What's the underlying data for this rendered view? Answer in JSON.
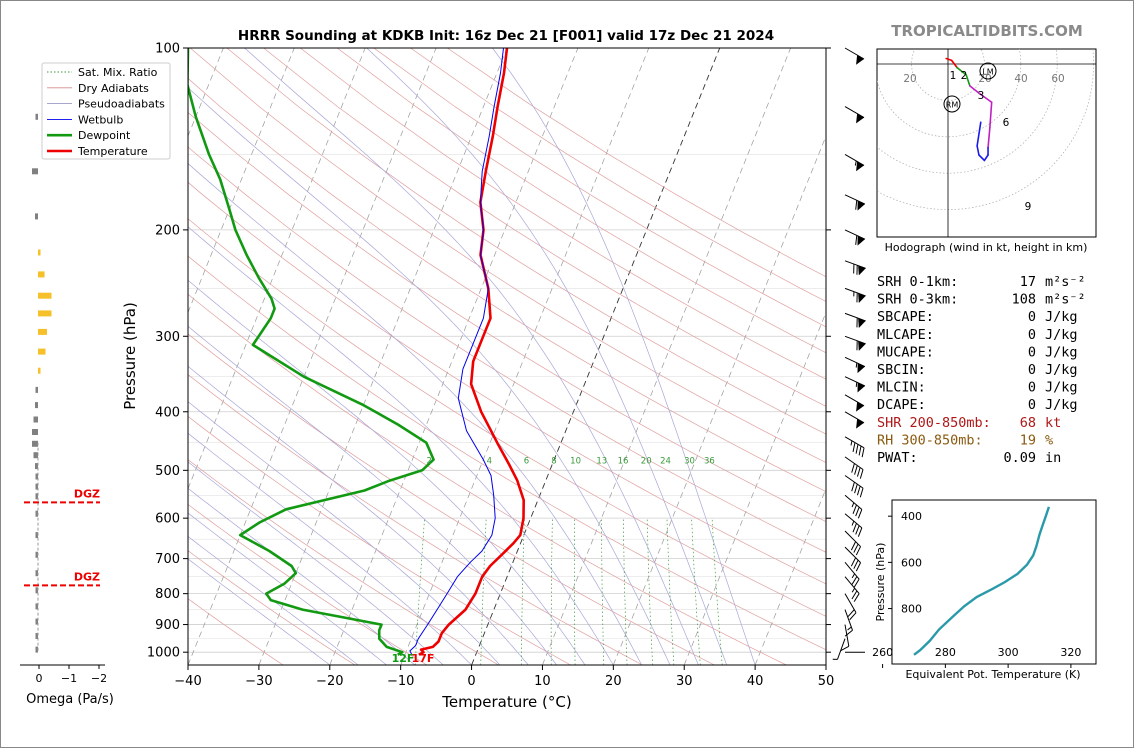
{
  "chart_data": {
    "type": "line",
    "title": "HRRR Sounding at KDKB Init: 16z Dec 21 [F001] valid 17z Dec 21 2024",
    "watermark": "TROPICALTIDBITS.COM",
    "xlabel": "Temperature (°C)",
    "ylabel": "Pressure (hPa)",
    "xlim": [
      -40,
      50
    ],
    "ylim": [
      1050,
      100
    ],
    "x_ticks": [
      -40,
      -30,
      -20,
      -10,
      0,
      10,
      20,
      30,
      40,
      50
    ],
    "x_tick_labels": [
      "−40",
      "−30",
      "−20",
      "−10",
      "0",
      "10",
      "20",
      "30",
      "40",
      "50"
    ],
    "y_ticks": [
      100,
      200,
      300,
      400,
      500,
      600,
      700,
      800,
      900,
      1000
    ],
    "y_tick_labels": [
      "100",
      "200",
      "300",
      "400",
      "500",
      "600",
      "700",
      "800",
      "900",
      "1000"
    ],
    "mixing_ratio_labels": [
      "2",
      "4",
      "6",
      "8",
      "10",
      "13",
      "16",
      "20",
      "24",
      "30",
      "36"
    ],
    "legend": {
      "placement": "upper-left",
      "items": [
        {
          "label": "Sat. Mix. Ratio",
          "color": "#3a9a3a",
          "style": "dotted"
        },
        {
          "label": "Dry Adiabats",
          "color": "#d48a8a",
          "style": "solid"
        },
        {
          "label": "Pseudoadiabats",
          "color": "#9a9ac8",
          "style": "solid"
        },
        {
          "label": "Wetbulb",
          "color": "#0000ee",
          "style": "solid"
        },
        {
          "label": "Dewpoint",
          "color": "#119911",
          "style": "bold"
        },
        {
          "label": "Temperature",
          "color": "#ee0000",
          "style": "bold"
        }
      ]
    },
    "series": [
      {
        "name": "Temperature",
        "color": "#ee0000",
        "points": [
          [
            -8,
            1010
          ],
          [
            -7.5,
            1000
          ],
          [
            -8,
            990
          ],
          [
            -6.5,
            980
          ],
          [
            -6,
            960
          ],
          [
            -6,
            930
          ],
          [
            -5.5,
            900
          ],
          [
            -4,
            850
          ],
          [
            -3.5,
            800
          ],
          [
            -3.5,
            750
          ],
          [
            -3,
            720
          ],
          [
            -2,
            690
          ],
          [
            -1,
            660
          ],
          [
            -0.5,
            640
          ],
          [
            -1,
            600
          ],
          [
            -2,
            560
          ],
          [
            -4,
            520
          ],
          [
            -6,
            490
          ],
          [
            -9,
            450
          ],
          [
            -13,
            400
          ],
          [
            -16,
            360
          ],
          [
            -17,
            330
          ],
          [
            -17,
            300
          ],
          [
            -17,
            280
          ],
          [
            -19,
            250
          ],
          [
            -22,
            220
          ],
          [
            -23,
            200
          ],
          [
            -25,
            180
          ],
          [
            -26,
            160
          ],
          [
            -27,
            140
          ],
          [
            -28,
            125
          ],
          [
            -29,
            110
          ],
          [
            -30,
            100
          ]
        ]
      },
      {
        "name": "Wetbulb",
        "color": "#0000ee",
        "points": [
          [
            -9,
            1010
          ],
          [
            -9.5,
            995
          ],
          [
            -9,
            975
          ],
          [
            -9,
            950
          ],
          [
            -8.5,
            900
          ],
          [
            -8,
            850
          ],
          [
            -7.5,
            800
          ],
          [
            -7,
            750
          ],
          [
            -6,
            710
          ],
          [
            -5,
            680
          ],
          [
            -4.5,
            640
          ],
          [
            -5,
            600
          ],
          [
            -6.5,
            550
          ],
          [
            -8,
            510
          ],
          [
            -10,
            480
          ],
          [
            -14,
            430
          ],
          [
            -17,
            380
          ],
          [
            -18,
            340
          ],
          [
            -18,
            300
          ],
          [
            -18,
            280
          ],
          [
            -19,
            250
          ],
          [
            -22,
            220
          ],
          [
            -23,
            200
          ],
          [
            -25,
            180
          ],
          [
            -26.5,
            160
          ],
          [
            -27.5,
            140
          ],
          [
            -28.5,
            125
          ],
          [
            -29.5,
            110
          ],
          [
            -30.5,
            100
          ]
        ]
      },
      {
        "name": "Dewpoint",
        "color": "#119911",
        "points": [
          [
            -11,
            1010
          ],
          [
            -10.5,
            1000
          ],
          [
            -13,
            980
          ],
          [
            -14.5,
            950
          ],
          [
            -15,
            920
          ],
          [
            -15,
            900
          ],
          [
            -27,
            850
          ],
          [
            -32,
            820
          ],
          [
            -33,
            800
          ],
          [
            -31,
            770
          ],
          [
            -30,
            740
          ],
          [
            -31,
            720
          ],
          [
            -35,
            680
          ],
          [
            -40,
            640
          ],
          [
            -38,
            610
          ],
          [
            -35,
            580
          ],
          [
            -25,
            540
          ],
          [
            -22,
            520
          ],
          [
            -18,
            500
          ],
          [
            -17,
            480
          ],
          [
            -19,
            450
          ],
          [
            -24,
            420
          ],
          [
            -30,
            390
          ],
          [
            -40,
            350
          ],
          [
            -49,
            310
          ],
          [
            -48,
            280
          ],
          [
            -48,
            270
          ],
          [
            -49,
            260
          ],
          [
            -52,
            240
          ],
          [
            -55,
            220
          ],
          [
            -58,
            200
          ],
          [
            -60,
            185
          ],
          [
            -63,
            165
          ],
          [
            -66,
            150
          ],
          [
            -70,
            130
          ],
          [
            -73,
            115
          ],
          [
            -75,
            100
          ]
        ]
      }
    ],
    "surface_labels": [
      {
        "text": "12F",
        "color": "#119911"
      },
      {
        "text": "17F",
        "color": "#ee0000"
      }
    ]
  },
  "omega_panel": {
    "xlabel": "Omega (Pa/s)",
    "x_tick_labels": [
      "0",
      "−1",
      "−2"
    ],
    "dgz_label": "DGZ",
    "dgz_levels": [
      565,
      775
    ],
    "bars": [
      {
        "p": 130,
        "v": -0.05
      },
      {
        "p": 160,
        "v": -0.2
      },
      {
        "p": 190,
        "v": -0.1
      },
      {
        "p": 218,
        "v": 0.03
      },
      {
        "p": 237,
        "v": 0.22
      },
      {
        "p": 257,
        "v": 0.45
      },
      {
        "p": 275,
        "v": 0.45
      },
      {
        "p": 295,
        "v": 0.3
      },
      {
        "p": 318,
        "v": 0.25
      },
      {
        "p": 342,
        "v": 0.05
      },
      {
        "p": 368,
        "v": -0.05
      },
      {
        "p": 390,
        "v": -0.1
      },
      {
        "p": 412,
        "v": -0.15
      },
      {
        "p": 432,
        "v": -0.2
      },
      {
        "p": 452,
        "v": -0.2
      },
      {
        "p": 472,
        "v": -0.15
      },
      {
        "p": 492,
        "v": -0.1
      },
      {
        "p": 512,
        "v": -0.08
      },
      {
        "p": 532,
        "v": -0.05
      },
      {
        "p": 552,
        "v": -0.05
      },
      {
        "p": 590,
        "v": -0.03
      },
      {
        "p": 640,
        "v": -0.03
      },
      {
        "p": 690,
        "v": -0.03
      },
      {
        "p": 740,
        "v": -0.03
      },
      {
        "p": 790,
        "v": -0.03
      },
      {
        "p": 840,
        "v": -0.03
      },
      {
        "p": 890,
        "v": -0.03
      },
      {
        "p": 940,
        "v": -0.03
      },
      {
        "p": 990,
        "v": -0.03
      }
    ]
  },
  "wind_barbs": [
    {
      "p": 100,
      "spd": 50,
      "dir": 300
    },
    {
      "p": 125,
      "spd": 50,
      "dir": 300
    },
    {
      "p": 150,
      "spd": 55,
      "dir": 300
    },
    {
      "p": 175,
      "spd": 60,
      "dir": 295
    },
    {
      "p": 200,
      "spd": 60,
      "dir": 295
    },
    {
      "p": 225,
      "spd": 70,
      "dir": 290
    },
    {
      "p": 250,
      "spd": 65,
      "dir": 290
    },
    {
      "p": 275,
      "spd": 60,
      "dir": 290
    },
    {
      "p": 300,
      "spd": 60,
      "dir": 290
    },
    {
      "p": 325,
      "spd": 55,
      "dir": 295
    },
    {
      "p": 350,
      "spd": 55,
      "dir": 295
    },
    {
      "p": 375,
      "spd": 50,
      "dir": 300
    },
    {
      "p": 400,
      "spd": 50,
      "dir": 300
    },
    {
      "p": 440,
      "spd": 45,
      "dir": 300
    },
    {
      "p": 475,
      "spd": 40,
      "dir": 305
    },
    {
      "p": 510,
      "spd": 40,
      "dir": 305
    },
    {
      "p": 550,
      "spd": 35,
      "dir": 310
    },
    {
      "p": 590,
      "spd": 35,
      "dir": 310
    },
    {
      "p": 630,
      "spd": 30,
      "dir": 315
    },
    {
      "p": 670,
      "spd": 30,
      "dir": 315
    },
    {
      "p": 710,
      "spd": 25,
      "dir": 320
    },
    {
      "p": 750,
      "spd": 25,
      "dir": 320
    },
    {
      "p": 800,
      "spd": 20,
      "dir": 330
    },
    {
      "p": 850,
      "spd": 15,
      "dir": 340
    },
    {
      "p": 900,
      "spd": 10,
      "dir": 350
    },
    {
      "p": 950,
      "spd": 5,
      "dir": 20
    },
    {
      "p": 1000,
      "spd": 0,
      "dir": 0
    }
  ],
  "hodograph": {
    "caption": "Hodograph (wind in kt, height in km)",
    "ring_labels": [
      "20",
      "20",
      "40",
      "60"
    ],
    "marker_LM": "LM",
    "marker_RM": "RM",
    "height_labels": [
      "1",
      "2",
      "3",
      "6",
      "9"
    ],
    "trace": [
      {
        "u": -1,
        "v": 3,
        "color": "#ee0000"
      },
      {
        "u": 2,
        "v": 2,
        "color": "#ee0000"
      },
      {
        "u": 5,
        "v": -2,
        "color": "#ee0000"
      },
      {
        "u": 10,
        "v": -6,
        "color": "#119911"
      },
      {
        "u": 12,
        "v": -12,
        "color": "#119911"
      },
      {
        "u": 17,
        "v": -16,
        "color": "#c020c0"
      },
      {
        "u": 24,
        "v": -21,
        "color": "#c020c0"
      },
      {
        "u": 23,
        "v": -35,
        "color": "#c020c0"
      },
      {
        "u": 22,
        "v": -46,
        "color": "#c020c0"
      },
      {
        "u": 22,
        "v": -50,
        "color": "#1a1aee"
      },
      {
        "u": 20,
        "v": -53,
        "color": "#1a1aee"
      },
      {
        "u": 17,
        "v": -50,
        "color": "#1a1aee"
      },
      {
        "u": 16,
        "v": -45,
        "color": "#1a1aee"
      },
      {
        "u": 18,
        "v": -32,
        "color": "#1a1aee"
      }
    ]
  },
  "stats": [
    {
      "label": "SRH 0-1km:",
      "value": "17",
      "unit": "m²s⁻²",
      "color": "#000000"
    },
    {
      "label": "SRH 0-3km:",
      "value": "108",
      "unit": "m²s⁻²",
      "color": "#000000"
    },
    {
      "label": "SBCAPE:",
      "value": "0",
      "unit": "J/kg",
      "color": "#000000"
    },
    {
      "label": "MLCAPE:",
      "value": "0",
      "unit": "J/kg",
      "color": "#000000"
    },
    {
      "label": "MUCAPE:",
      "value": "0",
      "unit": "J/kg",
      "color": "#000000"
    },
    {
      "label": "SBCIN:",
      "value": "0",
      "unit": "J/kg",
      "color": "#000000"
    },
    {
      "label": "MLCIN:",
      "value": "0",
      "unit": "J/kg",
      "color": "#000000"
    },
    {
      "label": "DCAPE:",
      "value": "0",
      "unit": "J/kg",
      "color": "#000000"
    },
    {
      "label": "SHR 200-850mb:",
      "value": "68",
      "unit": "kt",
      "color": "#b01818"
    },
    {
      "label": "RH 300-850mb:",
      "value": "19",
      "unit": "%",
      "color": "#8a5a10"
    },
    {
      "label": "PWAT:",
      "value": "0.09",
      "unit": "in",
      "color": "#000000"
    }
  ],
  "theta_e": {
    "xlabel": "Equivalent Pot. Temperature (K)",
    "ylabel": "Pressure (hPa)",
    "x_tick_labels": [
      "260",
      "280",
      "300",
      "320"
    ],
    "y_tick_labels": [
      "400",
      "600",
      "800"
    ],
    "color": "#2a9aaa",
    "points": [
      [
        270,
        1000
      ],
      [
        272,
        980
      ],
      [
        275,
        940
      ],
      [
        278,
        890
      ],
      [
        282,
        840
      ],
      [
        286,
        790
      ],
      [
        290,
        750
      ],
      [
        295,
        715
      ],
      [
        299,
        685
      ],
      [
        303,
        650
      ],
      [
        306,
        610
      ],
      [
        308,
        570
      ],
      [
        309,
        530
      ],
      [
        310,
        480
      ],
      [
        311,
        440
      ],
      [
        312,
        400
      ],
      [
        313,
        360
      ],
      [
        314,
        320
      ],
      [
        316,
        280
      ],
      [
        318,
        250
      ],
      [
        322,
        220
      ],
      [
        326,
        200
      ]
    ]
  }
}
